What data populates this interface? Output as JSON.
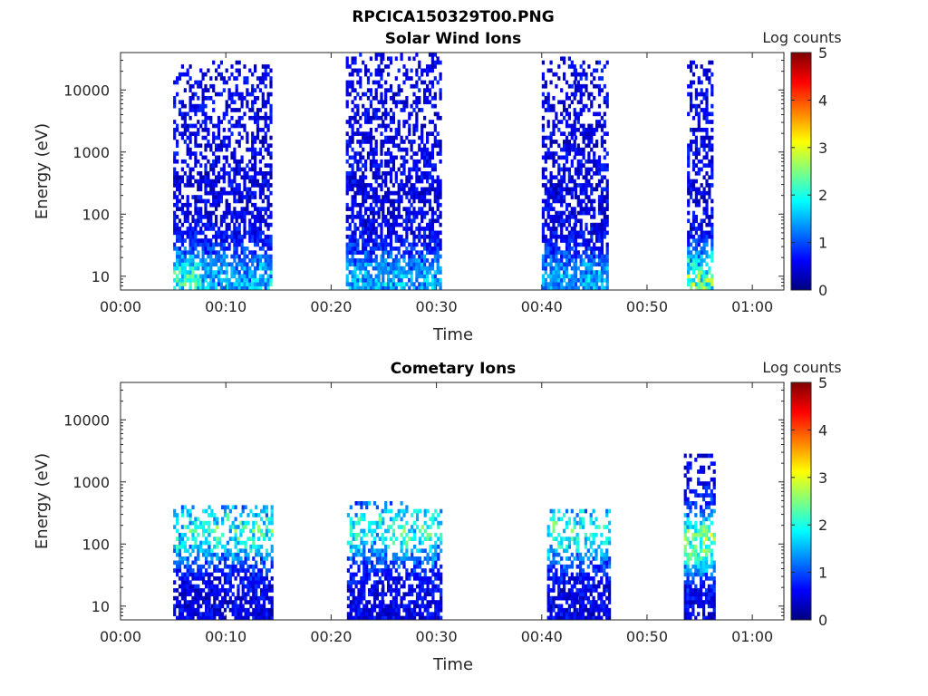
{
  "figure_title": "RPCICA150329T00.PNG",
  "colors": {
    "colormap": [
      "#00007f",
      "#0000ff",
      "#007fff",
      "#00ffff",
      "#7fff7f",
      "#ffff00",
      "#ff7f00",
      "#ff0000",
      "#7f0000"
    ],
    "axis": "#262626"
  },
  "chart_data": [
    {
      "type": "heatmap",
      "title": "Solar Wind Ions",
      "xlabel": "Time",
      "ylabel": "Energy (eV)",
      "xlim": [
        "00:00",
        "01:03"
      ],
      "ylim": [
        6,
        40000
      ],
      "yscale": "log",
      "x_ticks": [
        "00:00",
        "00:10",
        "00:20",
        "00:30",
        "00:40",
        "00:50",
        "01:00"
      ],
      "y_ticks": [
        "10",
        "100",
        "1000",
        "10000"
      ],
      "colorbar": {
        "label": "Log counts",
        "min": 0,
        "max": 5,
        "ticks": [
          "0",
          "1",
          "2",
          "3",
          "4",
          "5"
        ]
      },
      "bursts": [
        {
          "start_min": 5.0,
          "end_min": 7.7,
          "e_min": 6,
          "e_max": 25000,
          "peak_energy": 8,
          "peak_level": 2.2
        },
        {
          "start_min": 7.7,
          "end_min": 10.9,
          "e_min": 6,
          "e_max": 28000,
          "peak_energy": 8,
          "peak_level": 1.3
        },
        {
          "start_min": 10.9,
          "end_min": 14.3,
          "e_min": 6,
          "e_max": 28000,
          "peak_energy": 8,
          "peak_level": 1.4
        },
        {
          "start_min": 21.4,
          "end_min": 24.8,
          "e_min": 6,
          "e_max": 40000,
          "peak_energy": 8,
          "peak_level": 1.3
        },
        {
          "start_min": 24.8,
          "end_min": 27.5,
          "e_min": 6,
          "e_max": 35000,
          "peak_energy": 8,
          "peak_level": 1.3
        },
        {
          "start_min": 27.5,
          "end_min": 30.3,
          "e_min": 6,
          "e_max": 40000,
          "peak_energy": 8,
          "peak_level": 1.3
        },
        {
          "start_min": 40.0,
          "end_min": 43.1,
          "e_min": 6,
          "e_max": 30000,
          "peak_energy": 8,
          "peak_level": 1.2
        },
        {
          "start_min": 43.1,
          "end_min": 46.3,
          "e_min": 6,
          "e_max": 28000,
          "peak_energy": 8,
          "peak_level": 1.2
        },
        {
          "start_min": 53.8,
          "end_min": 56.3,
          "e_min": 6,
          "e_max": 28000,
          "peak_energy": 8,
          "peak_level": 2.4
        }
      ]
    },
    {
      "type": "heatmap",
      "title": "Cometary Ions",
      "xlabel": "Time",
      "ylabel": "Energy (eV)",
      "xlim": [
        "00:00",
        "01:03"
      ],
      "ylim": [
        6,
        40000
      ],
      "yscale": "log",
      "x_ticks": [
        "00:00",
        "00:10",
        "00:20",
        "00:30",
        "00:40",
        "00:50",
        "01:00"
      ],
      "y_ticks": [
        "10",
        "100",
        "1000",
        "10000"
      ],
      "colorbar": {
        "label": "Log counts",
        "min": 0,
        "max": 5,
        "ticks": [
          "0",
          "1",
          "2",
          "3",
          "4",
          "5"
        ]
      },
      "bursts": [
        {
          "start_min": 5.0,
          "end_min": 8.3,
          "e_min": 6,
          "e_max": 400,
          "peak_energy": 150,
          "peak_level": 2.0
        },
        {
          "start_min": 8.3,
          "end_min": 11.5,
          "e_min": 6,
          "e_max": 400,
          "peak_energy": 150,
          "peak_level": 2.1
        },
        {
          "start_min": 11.5,
          "end_min": 14.5,
          "e_min": 6,
          "e_max": 400,
          "peak_energy": 150,
          "peak_level": 2.1
        },
        {
          "start_min": 21.5,
          "end_min": 24.8,
          "e_min": 6,
          "e_max": 450,
          "peak_energy": 150,
          "peak_level": 2.0
        },
        {
          "start_min": 24.8,
          "end_min": 27.8,
          "e_min": 6,
          "e_max": 450,
          "peak_energy": 150,
          "peak_level": 2.0
        },
        {
          "start_min": 27.8,
          "end_min": 30.5,
          "e_min": 6,
          "e_max": 350,
          "peak_energy": 150,
          "peak_level": 2.1
        },
        {
          "start_min": 40.5,
          "end_min": 43.3,
          "e_min": 6,
          "e_max": 350,
          "peak_energy": 150,
          "peak_level": 2.1
        },
        {
          "start_min": 43.3,
          "end_min": 46.5,
          "e_min": 6,
          "e_max": 350,
          "peak_energy": 150,
          "peak_level": 2.0
        },
        {
          "start_min": 53.5,
          "end_min": 56.5,
          "e_min": 6,
          "e_max": 2500,
          "peak_energy": 100,
          "peak_level": 2.6
        }
      ]
    }
  ]
}
